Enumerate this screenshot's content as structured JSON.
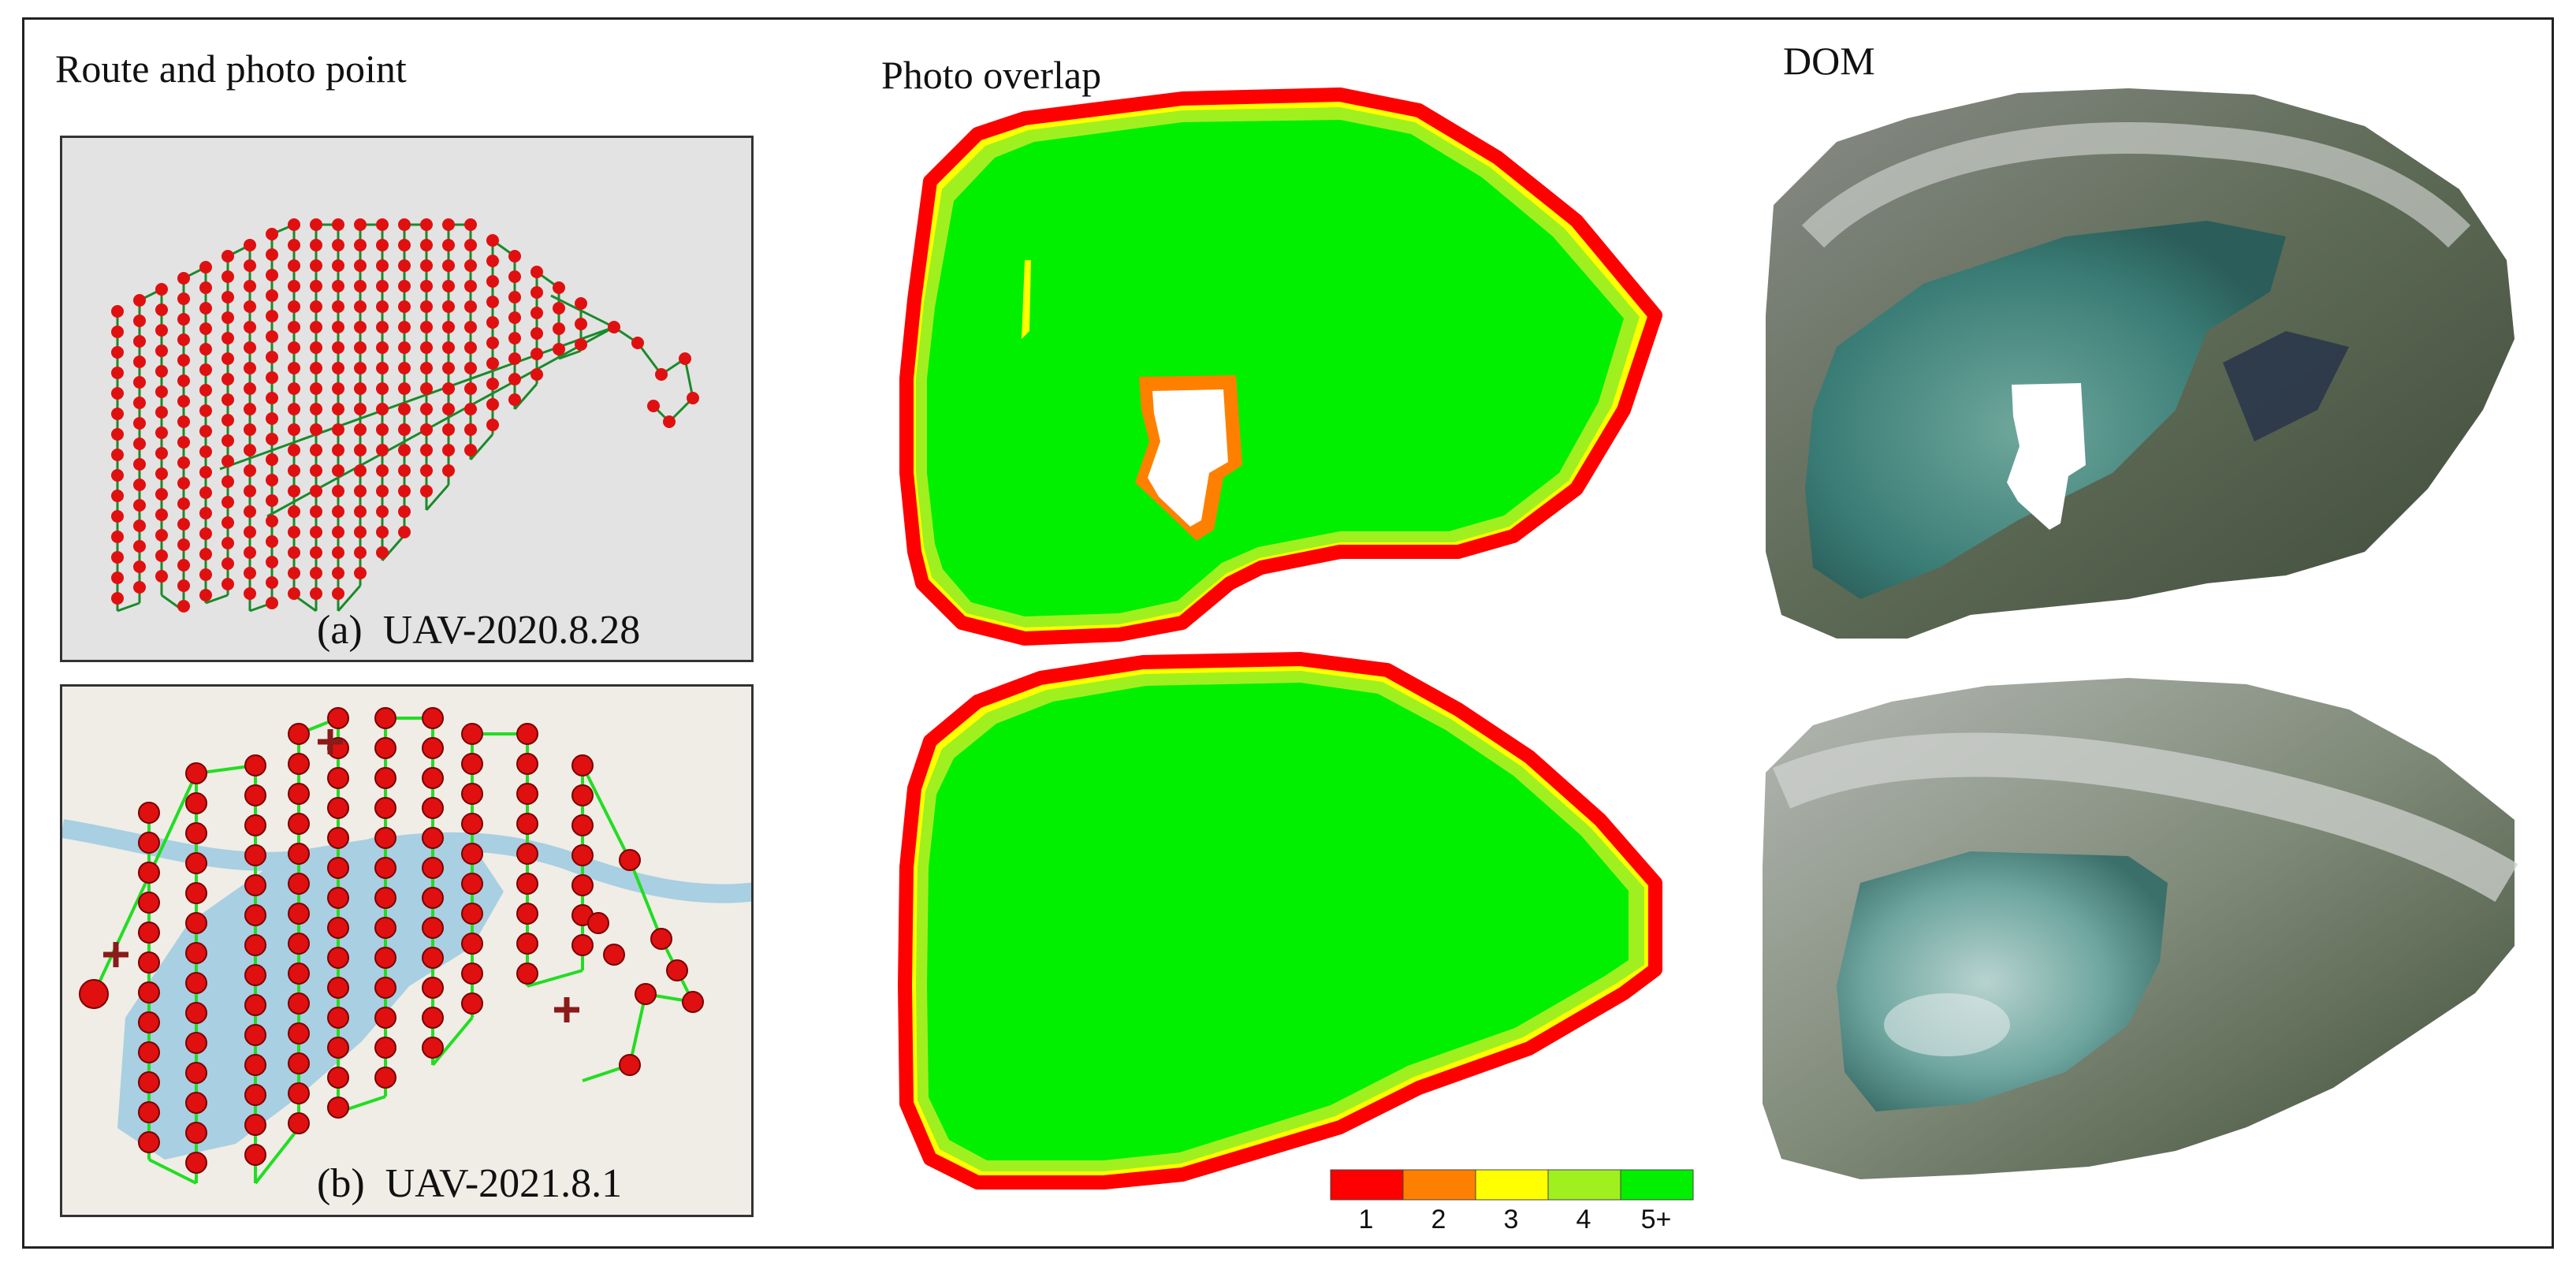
{
  "titles": {
    "route": "Route and photo point",
    "overlap": "Photo overlap",
    "dom": "DOM"
  },
  "panels": {
    "a": {
      "label": "(a)",
      "dataset": "UAV-2020.8.28"
    },
    "b": {
      "label": "(b)",
      "dataset": "UAV-2021.8.1"
    }
  },
  "legend": {
    "labels": [
      "1",
      "2",
      "3",
      "4",
      "5+"
    ],
    "colors": [
      "#ff0000",
      "#ff8000",
      "#ffff00",
      "#a0f020",
      "#00f000"
    ]
  },
  "colors": {
    "photo_point": "#e01010",
    "route_line_a": "#1a8a2a",
    "route_line_b": "#22dd22",
    "water": "#a8cfe2",
    "map_bg_a": "#e3e3e3",
    "map_bg_b": "#efede6",
    "overlap_full": "#00f000"
  }
}
